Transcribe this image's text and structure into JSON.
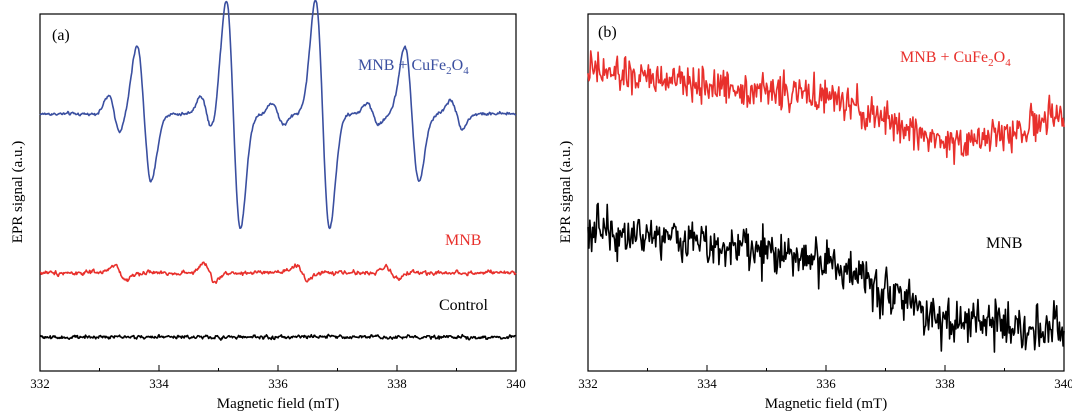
{
  "chart_data": [
    {
      "panel": "(a)",
      "type": "line",
      "xlabel": "Magnetic field (mT)",
      "ylabel": "EPR signal (a.u.)",
      "xlim": [
        332,
        340
      ],
      "xticks": [
        "332",
        "334",
        "336",
        "338",
        "340"
      ],
      "y_ticks_labeled": false,
      "grid": false,
      "legend": "none (inline series labels)",
      "series": [
        {
          "name": "MNB + CuFe2O4",
          "label_main": "MNB + CuFe",
          "label_sub1": "2",
          "label_mid": "O",
          "label_sub2": "4",
          "color": "#3a4fa0",
          "baseline": 0.72,
          "noise": 0.006,
          "lines": [
            {
              "center": 333.75,
              "amp": 0.19,
              "width": 0.17
            },
            {
              "center": 335.25,
              "amp": 0.32,
              "width": 0.17
            },
            {
              "center": 336.75,
              "amp": 0.32,
              "width": 0.17
            },
            {
              "center": 338.25,
              "amp": 0.19,
              "width": 0.17
            },
            {
              "center": 333.25,
              "amp": 0.05,
              "width": 0.14
            },
            {
              "center": 334.8,
              "amp": 0.05,
              "width": 0.14
            },
            {
              "center": 336.0,
              "amp": 0.03,
              "width": 0.14
            },
            {
              "center": 337.6,
              "amp": 0.03,
              "width": 0.14
            },
            {
              "center": 339.0,
              "amp": 0.04,
              "width": 0.14
            }
          ]
        },
        {
          "name": "MNB",
          "label_main": "MNB",
          "color": "#e8302c",
          "baseline": 0.275,
          "noise": 0.008,
          "lines": [
            {
              "center": 333.35,
              "amp": 0.02,
              "width": 0.14
            },
            {
              "center": 334.85,
              "amp": 0.025,
              "width": 0.14
            },
            {
              "center": 336.4,
              "amp": 0.02,
              "width": 0.14
            },
            {
              "center": 337.9,
              "amp": 0.015,
              "width": 0.14
            }
          ]
        },
        {
          "name": "Control",
          "label_main": "Control",
          "color": "#000000",
          "baseline": 0.095,
          "noise": 0.007,
          "lines": []
        }
      ]
    },
    {
      "panel": "(b)",
      "type": "line",
      "xlabel": "Magnetic field (mT)",
      "ylabel": "EPR signal (a.u.)",
      "xlim": [
        332,
        340
      ],
      "xticks": [
        "332",
        "334",
        "336",
        "338",
        "340"
      ],
      "y_ticks_labeled": false,
      "grid": false,
      "legend": "none (inline series labels)",
      "series": [
        {
          "name": "MNB + CuFe2O4",
          "label_main": "MNB + CuFe",
          "label_sub1": "2",
          "label_mid": "O",
          "label_sub2": "4",
          "color": "#e8302c",
          "trend": [
            [
              332,
              0.84
            ],
            [
              334,
              0.8
            ],
            [
              336,
              0.77
            ],
            [
              337,
              0.7
            ],
            [
              338,
              0.64
            ],
            [
              339,
              0.66
            ],
            [
              340,
              0.72
            ]
          ],
          "noise": 0.035
        },
        {
          "name": "MNB",
          "label_main": "MNB",
          "color": "#000000",
          "trend": [
            [
              332,
              0.4
            ],
            [
              334,
              0.36
            ],
            [
              336,
              0.31
            ],
            [
              337,
              0.23
            ],
            [
              338,
              0.14
            ],
            [
              339,
              0.13
            ],
            [
              340,
              0.12
            ]
          ],
          "noise": 0.045
        }
      ]
    }
  ]
}
